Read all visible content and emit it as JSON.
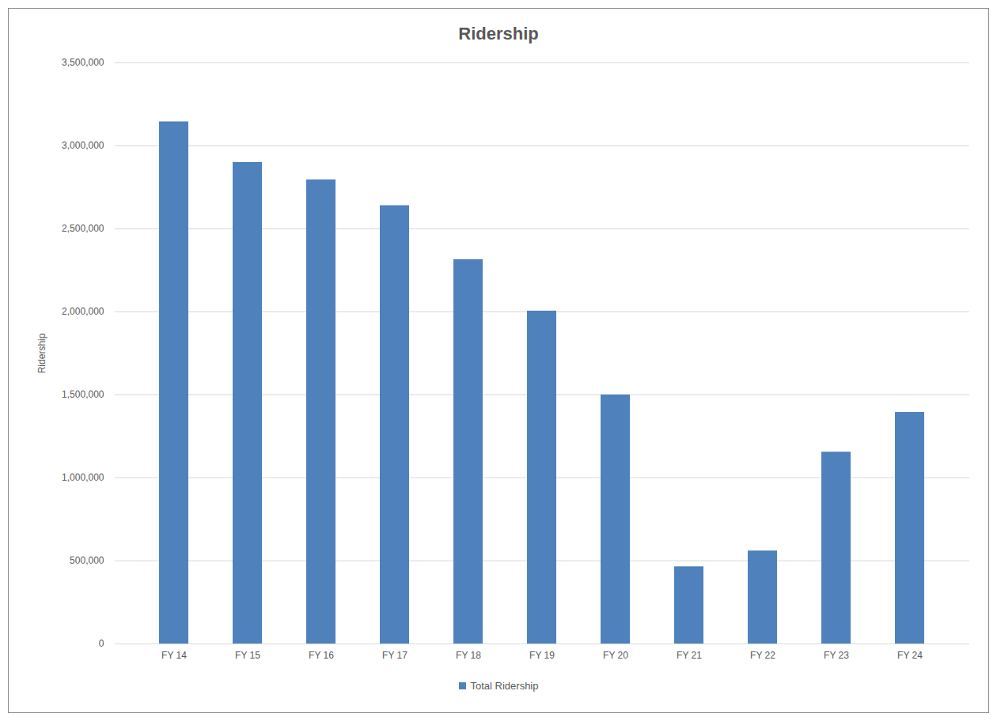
{
  "chart_data": {
    "type": "bar",
    "title": "Ridership",
    "y_label": "Ridership",
    "categories": [
      "FY 14",
      "FY 15",
      "FY 16",
      "FY 17",
      "FY 18",
      "FY 19",
      "FY 20",
      "FY 21",
      "FY 22",
      "FY 23",
      "FY 24"
    ],
    "series": [
      {
        "name": "Total Ridership",
        "color": "#4f81bd",
        "values": [
          3145000,
          2900000,
          2795000,
          2640000,
          2315000,
          2005000,
          1500000,
          465000,
          560000,
          1155000,
          1395000
        ]
      }
    ],
    "ylim": [
      0,
      3500000
    ],
    "yticks": [
      0,
      {
        "value": 500000,
        "label": "500,000"
      },
      {
        "value": 1000000,
        "label": "1,000,000"
      },
      {
        "value": 1500000,
        "label": "1,500,000"
      },
      {
        "value": 2000000,
        "label": "2,000,000"
      },
      {
        "value": 2500000,
        "label": "2,500,000"
      },
      {
        "value": 3000000,
        "label": "3,000,000"
      },
      {
        "value": 3500000,
        "label": "3,500,000"
      }
    ],
    "grid": true,
    "legend": "bottom"
  }
}
